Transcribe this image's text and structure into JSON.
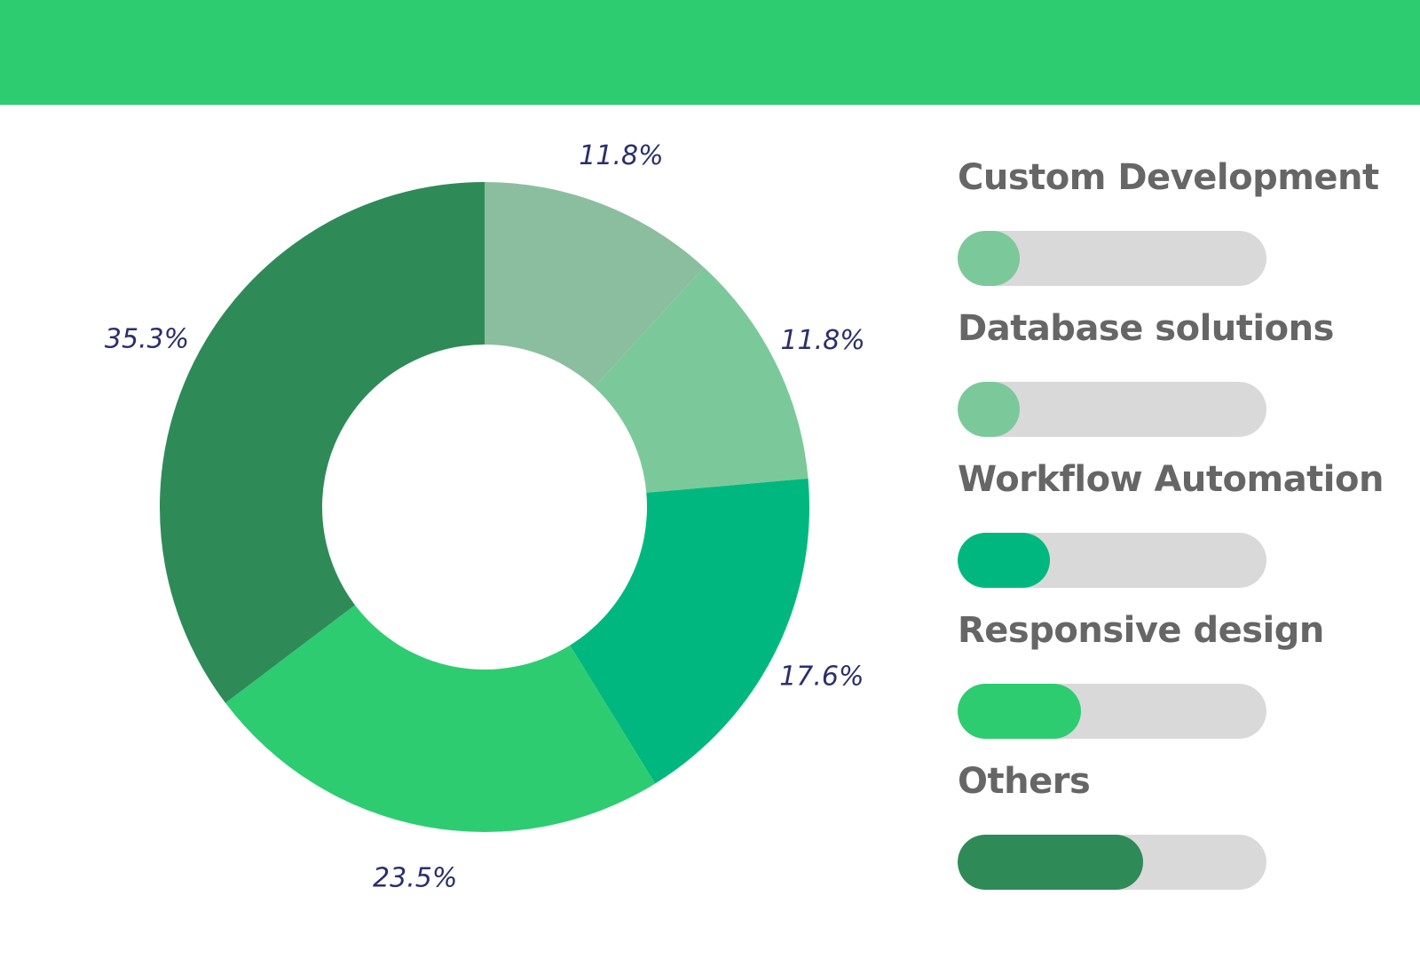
{
  "header": {
    "color": "#2ECC71"
  },
  "chart_data": {
    "type": "donut",
    "slices": [
      {
        "value": 11.8,
        "label": "11.8%",
        "color": "#8BBE9F"
      },
      {
        "value": 11.8,
        "label": "11.8%",
        "color": "#7BC99A"
      },
      {
        "value": 17.6,
        "label": "17.6%",
        "color": "#00B87F"
      },
      {
        "value": 23.5,
        "label": "23.5%",
        "color": "#2ECC71"
      },
      {
        "value": 35.3,
        "label": "35.3%",
        "color": "#2E8B57"
      }
    ],
    "legend": [
      {
        "label": "Custom Development",
        "progress": 0.2,
        "color": "#7BC99A"
      },
      {
        "label": "Database solutions",
        "progress": 0.2,
        "color": "#7BC99A"
      },
      {
        "label": "Workflow Automation",
        "progress": 0.3,
        "color": "#00B87F"
      },
      {
        "label": "Responsive design",
        "progress": 0.4,
        "color": "#2ECC71"
      },
      {
        "label": "Others",
        "progress": 0.6,
        "color": "#2E8B57"
      }
    ],
    "track_color": "#D9D9D9",
    "label_color": "#2B2F6B"
  }
}
